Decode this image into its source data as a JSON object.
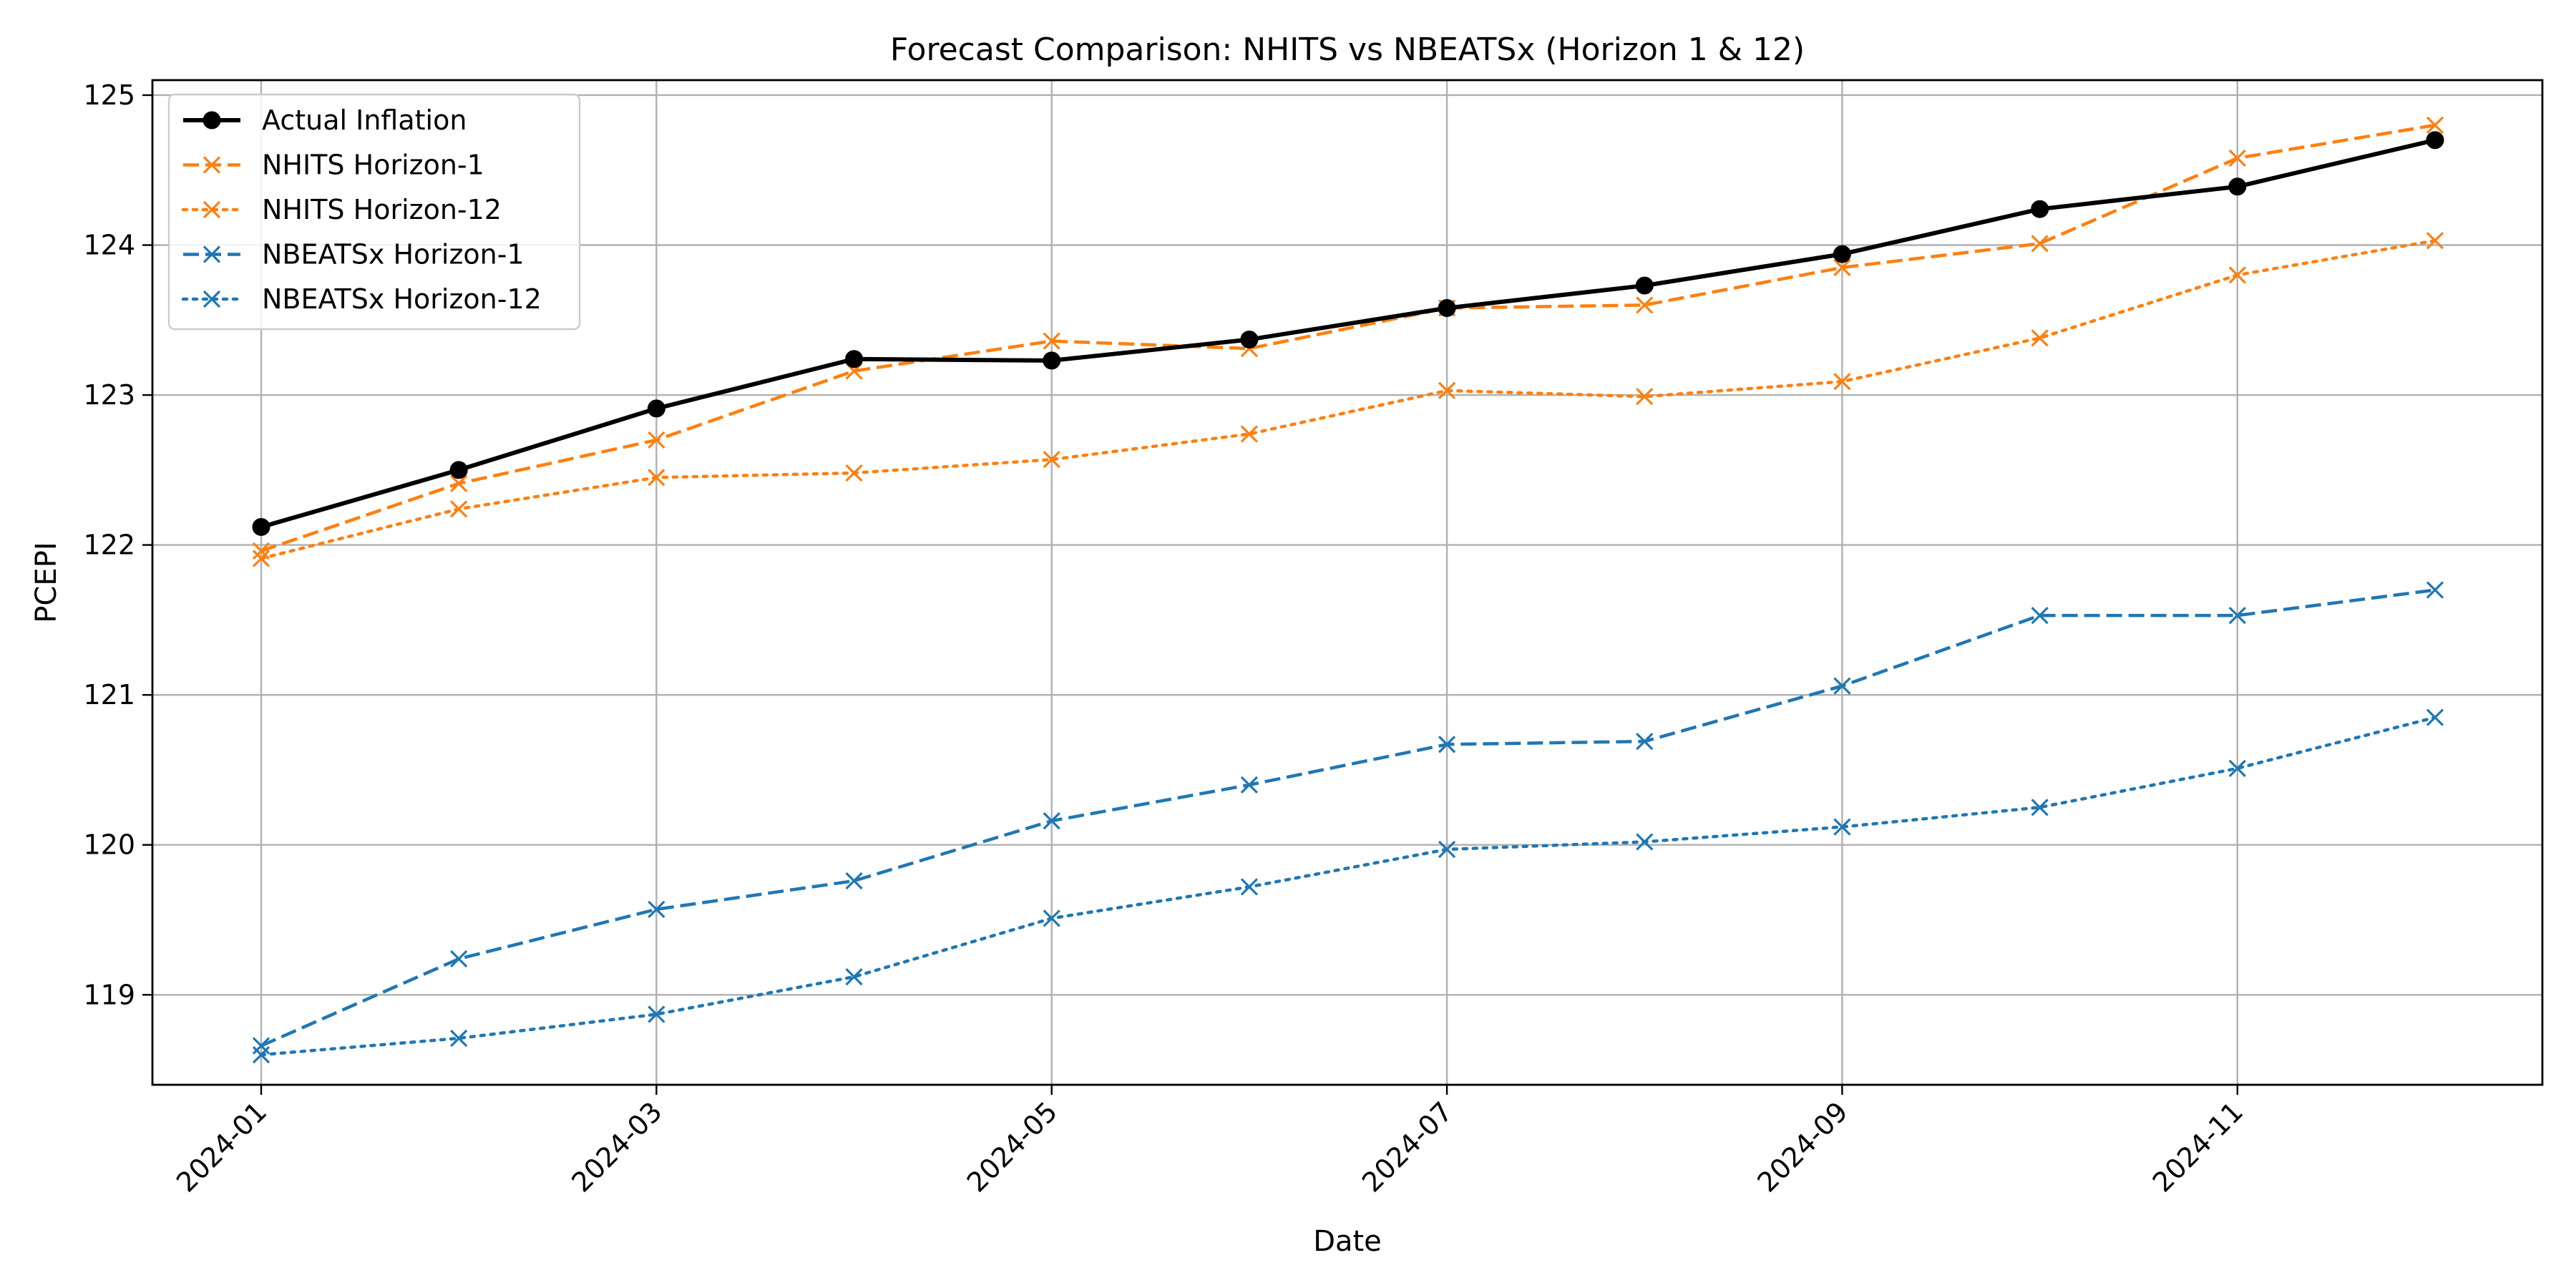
{
  "chart_data": {
    "type": "line",
    "title": "Forecast Comparison: NHITS vs NBEATSx (Horizon 1 & 12)",
    "xlabel": "Date",
    "ylabel": "PCEPI",
    "x": [
      "2024-01",
      "2024-02",
      "2024-03",
      "2024-04",
      "2024-05",
      "2024-06",
      "2024-07",
      "2024-08",
      "2024-09",
      "2024-10",
      "2024-11",
      "2024-12"
    ],
    "x_ticks": [
      "2024-01",
      "2024-03",
      "2024-05",
      "2024-07",
      "2024-09",
      "2024-11"
    ],
    "y_ticks": [
      119,
      120,
      121,
      122,
      123,
      124,
      125
    ],
    "ylim": [
      118.4,
      125.1
    ],
    "grid": true,
    "legend_position": "top-left",
    "series": [
      {
        "name": "Actual Inflation",
        "color": "#000000",
        "style": "solid",
        "marker": "circle",
        "values": [
          122.12,
          122.5,
          122.91,
          123.24,
          123.23,
          123.37,
          123.58,
          123.73,
          123.94,
          124.24,
          124.39,
          124.7
        ]
      },
      {
        "name": "NHITS Horizon-1",
        "color": "#ff7f0e",
        "style": "dashed",
        "marker": "x",
        "values": [
          121.96,
          122.41,
          122.7,
          123.16,
          123.36,
          123.31,
          123.58,
          123.6,
          123.85,
          124.01,
          124.58,
          124.8
        ]
      },
      {
        "name": "NHITS Horizon-12",
        "color": "#ff7f0e",
        "style": "dotted",
        "marker": "x",
        "values": [
          121.91,
          122.24,
          122.45,
          122.48,
          122.57,
          122.74,
          123.03,
          122.99,
          123.09,
          123.38,
          123.8,
          124.03
        ]
      },
      {
        "name": "NBEATSx Horizon-1",
        "color": "#1f77b4",
        "style": "dashed",
        "marker": "x",
        "values": [
          118.66,
          119.24,
          119.57,
          119.76,
          120.16,
          120.4,
          120.67,
          120.69,
          121.06,
          121.53,
          121.53,
          121.7
        ]
      },
      {
        "name": "NBEATSx Horizon-12",
        "color": "#1f77b4",
        "style": "dotted",
        "marker": "x",
        "values": [
          118.6,
          118.71,
          118.87,
          119.12,
          119.51,
          119.72,
          119.97,
          120.02,
          120.12,
          120.25,
          120.51,
          120.85
        ]
      }
    ]
  }
}
